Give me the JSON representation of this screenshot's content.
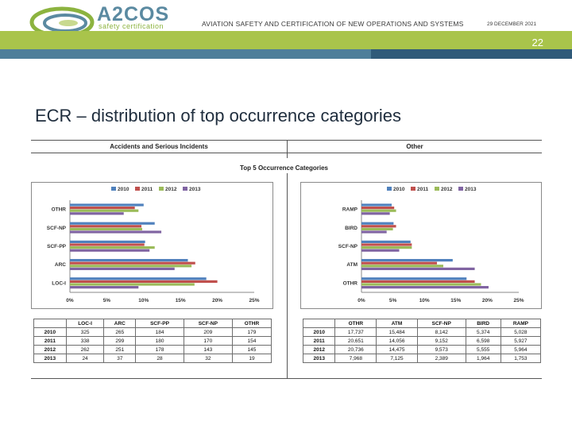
{
  "header": {
    "logo_name": "A2COS",
    "logo_subtitle": "safety certification",
    "title": "AVIATION SAFETY AND CERTIFICATION OF NEW OPERATIONS AND SYSTEMS",
    "date": "29 DECEMBER 2021",
    "page_number": "22"
  },
  "slide": {
    "title": "ECR – distribution of top occurrence categories",
    "left_heading": "Accidents and Serious Incidents",
    "right_heading": "Other",
    "center_subtitle": "Top 5 Occurrence Categories"
  },
  "colors": {
    "2010": "#4f81bd",
    "2011": "#c0504d",
    "2012": "#9bbb59",
    "2013": "#8064a2"
  },
  "chart_data": [
    {
      "type": "bar",
      "orientation": "horizontal",
      "title": "Accidents and Serious Incidents",
      "categories": [
        "OTHR",
        "SCF-NP",
        "SCF-PP",
        "ARC",
        "LOC-I"
      ],
      "series": [
        {
          "name": "2010",
          "values": [
            10.0,
            11.5,
            10.2,
            16.0,
            18.5
          ]
        },
        {
          "name": "2011",
          "values": [
            8.8,
            9.7,
            10.1,
            17.0,
            20.0
          ]
        },
        {
          "name": "2012",
          "values": [
            9.3,
            9.8,
            11.5,
            16.5,
            16.9
          ]
        },
        {
          "name": "2013",
          "values": [
            7.3,
            12.4,
            10.8,
            14.2,
            9.3
          ]
        }
      ],
      "xticks": [
        "0%",
        "5%",
        "10%",
        "15%",
        "20%",
        "25%"
      ],
      "xlim": [
        0,
        25
      ],
      "legend": "top"
    },
    {
      "type": "bar",
      "orientation": "horizontal",
      "title": "Other",
      "categories": [
        "RAMP",
        "BIRD",
        "SCF-NP",
        "ATM",
        "OTHR"
      ],
      "series": [
        {
          "name": "2010",
          "values": [
            4.8,
            5.1,
            7.8,
            14.5,
            16.7
          ]
        },
        {
          "name": "2011",
          "values": [
            5.2,
            5.5,
            8.0,
            12.0,
            18.0
          ]
        },
        {
          "name": "2012",
          "values": [
            5.5,
            5.0,
            8.0,
            13.0,
            19.0
          ]
        },
        {
          "name": "2013",
          "values": [
            4.5,
            4.0,
            6.0,
            18.0,
            20.2
          ]
        }
      ],
      "xticks": [
        "0%",
        "5%",
        "10%",
        "15%",
        "20%",
        "25%"
      ],
      "xlim": [
        0,
        25
      ],
      "legend": "top"
    }
  ],
  "tables": {
    "left": {
      "headers": [
        "",
        "LOC-I",
        "ARC",
        "SCF-PP",
        "SCF-NP",
        "OTHR"
      ],
      "rows": [
        [
          "2010",
          "325",
          "265",
          "184",
          "209",
          "179"
        ],
        [
          "2011",
          "338",
          "299",
          "180",
          "170",
          "154"
        ],
        [
          "2012",
          "262",
          "251",
          "178",
          "143",
          "145"
        ],
        [
          "2013",
          "24",
          "37",
          "28",
          "32",
          "19"
        ]
      ]
    },
    "right": {
      "headers": [
        "",
        "OTHR",
        "ATM",
        "SCF-NP",
        "BIRD",
        "RAMP"
      ],
      "rows": [
        [
          "2010",
          "17,737",
          "15,484",
          "8,142",
          "5,374",
          "5,028"
        ],
        [
          "2011",
          "20,651",
          "14,056",
          "9,152",
          "6,598",
          "5,927"
        ],
        [
          "2012",
          "20,736",
          "14,475",
          "9,573",
          "5,555",
          "5,964"
        ],
        [
          "2013",
          "7,968",
          "7,125",
          "2,389",
          "1,964",
          "1,753"
        ]
      ]
    }
  }
}
